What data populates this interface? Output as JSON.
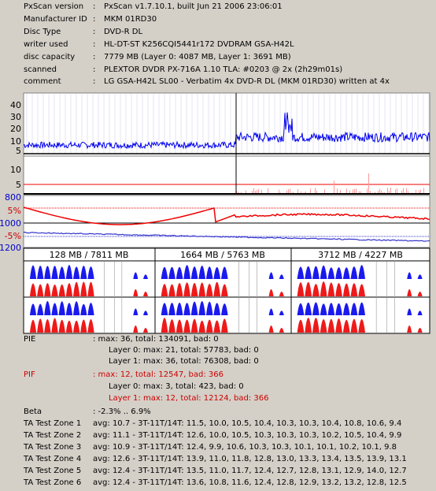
{
  "info": [
    {
      "label": "PxScan version",
      "value": "PxScan v1.7.10.1, built Jun 21 2006 23:06:01"
    },
    {
      "label": "Manufacturer ID",
      "value": "MKM 01RD30"
    },
    {
      "label": "Disc Type",
      "value": "DVD-R DL"
    },
    {
      "label": "writer used",
      "value": "HL-DT-ST K256CQI5441r172 DVDRAM GSA-H42L"
    },
    {
      "label": "disc capacity",
      "value": "7779 MB (Layer 0: 4087 MB,  Layer 1: 3691 MB)"
    },
    {
      "label": "scanned",
      "value": "PLEXTOR DVDR PX-716A 1.10 TLA: #0203 @ 2x (2h29m01s)"
    },
    {
      "label": "comment",
      "value": "LG GSA-H42L SL00 - Verbatim 4x DVD-R DL (MKM 01RD30) written at 4x"
    }
  ],
  "separator": ":",
  "pie_axis": [
    "40",
    "30",
    "20",
    "10",
    "5"
  ],
  "pif_axis": [
    "10",
    "5"
  ],
  "jitter_axis": {
    "top": "800",
    "pct_pos": "5%",
    "mid": "1000",
    "pct_neg": "-5%",
    "bottom": "1200"
  },
  "colors": {
    "pie": "#0000ee",
    "pif": "#ee0000",
    "jitter": "#ee0000",
    "beta": "#3333cc",
    "plot_bg": "#ffffff",
    "panel_bg": "#d4d0c8"
  },
  "ta_headers": [
    "128 MB / 7811 MB",
    "1664 MB / 5763 MB",
    "3712 MB / 4227 MB"
  ],
  "stats": [
    {
      "label": "PIE",
      "value": ": max: 36, total: 134091, bad: 0",
      "indent": false,
      "red": false
    },
    {
      "label": "",
      "value": "Layer 0: max: 21, total: 57783, bad: 0",
      "indent": true,
      "red": false
    },
    {
      "label": "",
      "value": "Layer 1: max: 36, total: 76308, bad: 0",
      "indent": true,
      "red": false
    },
    {
      "label": "PIF",
      "value": ": max: 12, total: 12547, bad: 366",
      "indent": false,
      "red": true
    },
    {
      "label": "",
      "value": "Layer 0: max: 3, total: 423, bad: 0",
      "indent": true,
      "red": false
    },
    {
      "label": "",
      "value": "Layer 1: max: 12, total: 12124, bad: 366",
      "indent": true,
      "red": true
    },
    {
      "label": "Beta",
      "value": ": -2.3% .. 6.9%",
      "indent": false,
      "red": false
    },
    {
      "label": "TA Test Zone 1",
      "value": "avg: 10.7 - 3T-11T/14T: 11.5, 10.0, 10.5, 10.4, 10.3, 10.3, 10.4, 10.8, 10.6, 9.4",
      "indent": false,
      "red": false
    },
    {
      "label": "TA Test Zone 2",
      "value": "avg: 11.1 - 3T-11T/14T: 12.6, 10.0, 10.5, 10.3, 10.3, 10.3, 10.2, 10.5, 10.4, 9.9",
      "indent": false,
      "red": false
    },
    {
      "label": "TA Test Zone 3",
      "value": "avg: 10.9 - 3T-11T/14T: 12.4, 9.9, 10.6, 10.3, 10.3, 10.1, 10.1, 10.2, 10.1, 9.8",
      "indent": false,
      "red": false
    },
    {
      "label": "TA Test Zone 4",
      "value": "avg: 12.6 - 3T-11T/14T: 13.9, 11.0, 11.8, 12.8, 13.0, 13.3, 13.4, 13.5, 13.9, 13.1",
      "indent": false,
      "red": false
    },
    {
      "label": "TA Test Zone 5",
      "value": "avg: 12.4 - 3T-11T/14T: 13.5, 11.0, 11.7, 12.4, 12.7, 12.8, 13.1, 12.9, 14.0, 12.7",
      "indent": false,
      "red": false
    },
    {
      "label": "TA Test Zone 6",
      "value": "avg: 12.4 - 3T-11T/14T: 13.6, 10.8, 11.6, 12.4, 12.8, 12.9, 13.2, 13.2, 12.8, 12.5",
      "indent": false,
      "red": false
    }
  ]
}
